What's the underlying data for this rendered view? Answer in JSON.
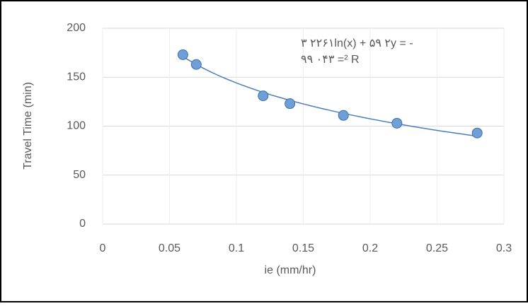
{
  "chart_data": {
    "type": "scatter",
    "xlabel": "ie (mm/hr)",
    "ylabel": "Travel Time (min)",
    "annotation": [
      "٢٢ ٣۶١ln(x) + ۵٢ ٩y = -",
      "٠ ٩٩۴٣ =² R"
    ],
    "x": [
      0.06,
      0.07,
      0.12,
      0.14,
      0.18,
      0.22,
      0.28
    ],
    "values": [
      173,
      163,
      131,
      123,
      111,
      103,
      93
    ],
    "color": "#6f9fd8",
    "trendline": {
      "slope": -52.9,
      "intercept": 22.361,
      "color": "#4a7ebb"
    },
    "xlim": [
      0,
      0.3
    ],
    "xticks": [
      0,
      0.05,
      0.1,
      0.15,
      0.2,
      0.25,
      0.3
    ],
    "ylim": [
      0,
      200
    ],
    "yticks": [
      0,
      50,
      100,
      150,
      200
    ],
    "grid": true
  }
}
